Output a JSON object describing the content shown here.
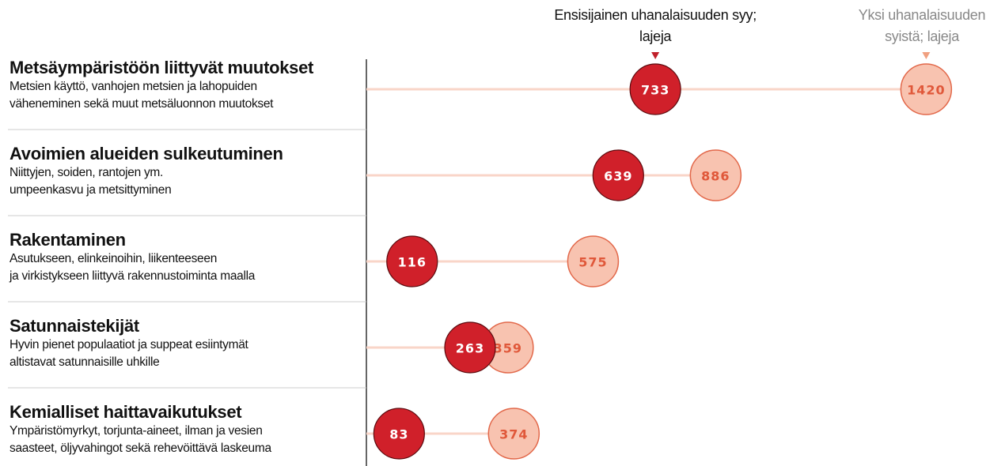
{
  "chart_data": {
    "type": "dot",
    "categories": [
      "Metsäympäristöön liittyvät muutokset",
      "Avoimien alueiden sulkeutuminen",
      "Rakentaminen",
      "Satunnaistekijät",
      "Kemialliset haittavaikutukset"
    ],
    "descriptions": [
      [
        "Metsien käyttö, vanhojen metsien ja lahopuiden",
        "väheneminen sekä muut metsäluonnon muutokset"
      ],
      [
        "Niittyjen, soiden, rantojen ym.",
        "umpeenkasvu ja metsittyminen"
      ],
      [
        "Asutukseen, elinkeinoihin, liikenteeseen",
        "ja virkistykseen liittyvä rakennustoiminta maalla"
      ],
      [
        "Hyvin pienet populaatiot ja suppeat esiintymät",
        "altistavat satunnaisille uhkille"
      ],
      [
        "Ympäristömyrkyt, torjunta-aineet, ilman ja vesien",
        "saasteet, öljyvahingot sekä rehevöittävä laskeuma"
      ]
    ],
    "series": [
      {
        "name": "Ensisijainen uhanalaisuuden syy; lajeja",
        "color": "#d0202a",
        "values": [
          733,
          639,
          116,
          263,
          83
        ]
      },
      {
        "name": "Yksi uhanalaisuuden syistä; lajeja",
        "color": "#f8c3b0",
        "values": [
          1420,
          886,
          575,
          359,
          374
        ]
      }
    ],
    "xlim": [
      0,
      1620
    ]
  }
}
